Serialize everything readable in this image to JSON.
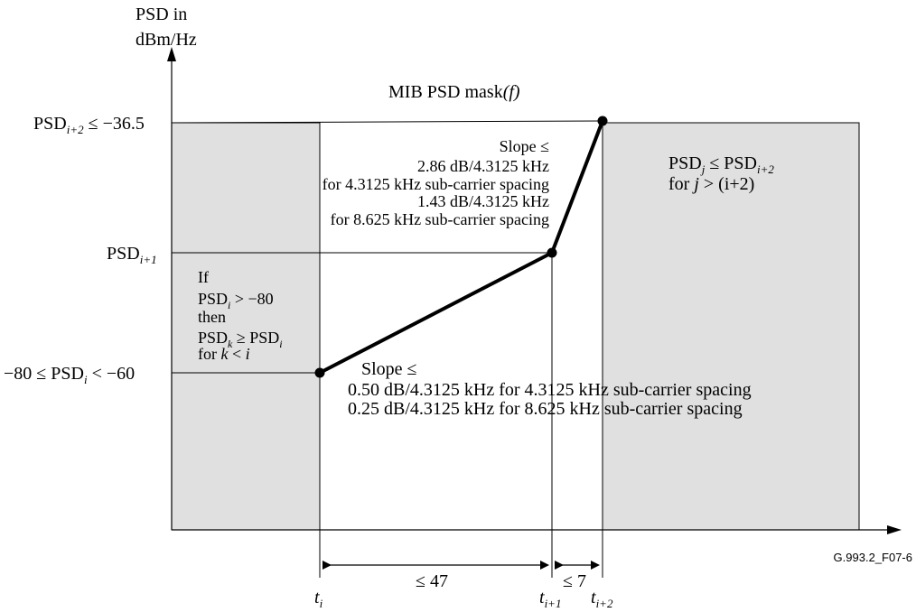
{
  "y_axis": {
    "title_line1": "PSD in",
    "title_line2": "dBm/Hz",
    "label_top_main": "PSD",
    "label_top_sub": "i+2",
    "label_top_rest": " ≤ −36.5",
    "label_mid_main": "PSD",
    "label_mid_sub": "i+1",
    "label_low_pre": "−80 ≤ PSD",
    "label_low_sub": "i",
    "label_low_post": " < −60"
  },
  "mask_title": {
    "text": "MIB PSD mask",
    "var": "(f)"
  },
  "left_region": {
    "line1": "If",
    "line2_main": "PSD",
    "line2_sub": "i",
    "line2_rest": " > −80",
    "line3": "then",
    "line4_main": "PSD",
    "line4_sub1": "k",
    "line4_mid": " ≥ PSD",
    "line4_sub2": "i",
    "line5_pre": "for ",
    "line5_k": "k",
    "line5_mid": " < ",
    "line5_i": "i"
  },
  "right_region": {
    "line1_main": "PSD",
    "line1_sub1": "j",
    "line1_mid": " ≤ PSD",
    "line1_sub2": "i+2",
    "line2_pre": "for ",
    "line2_j": "j",
    "line2_rest": " > (i+2)"
  },
  "steep_slope": {
    "line1": "Slope ≤",
    "line2": "2.86 dB/4.3125 kHz",
    "line3": "for 4.3125 kHz sub-carrier spacing",
    "line4": "1.43 dB/4.3125 kHz",
    "line5": "for 8.625  kHz sub-carrier spacing"
  },
  "gentle_slope": {
    "line1": "Slope ≤",
    "line2": "0.50 dB/4.3125 kHz  for 4.3125 kHz sub-carrier spacing",
    "line3": "0.25 dB/4.3125 kHz  for 8.625  kHz sub-carrier spacing"
  },
  "dimensions": {
    "span1": "≤ 47",
    "span2": "≤ 7"
  },
  "x_ticks": {
    "t": "t",
    "ti_sub": "i",
    "ti1_sub": "i+1",
    "ti2_sub": "i+2"
  },
  "figure_id": "G.993.2_F07-6",
  "colors": {
    "shade": "#e0e0e0",
    "line": "#000000"
  }
}
